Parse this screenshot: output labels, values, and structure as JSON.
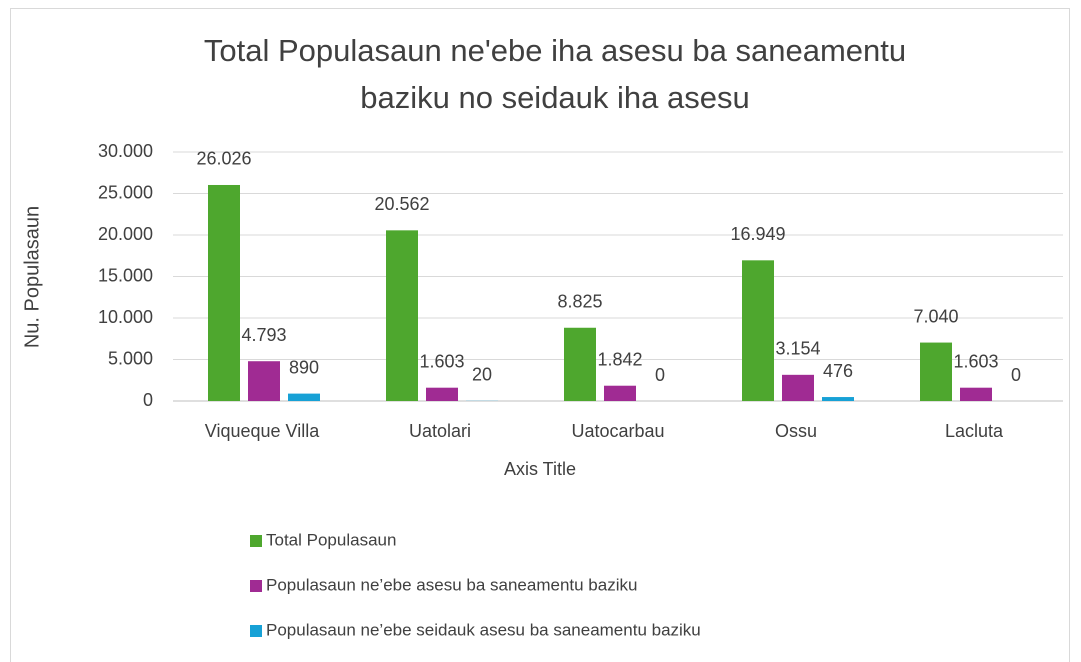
{
  "chart_data": {
    "type": "bar",
    "title": [
      "Total Populasaun ne'ebe iha asesu ba saneamentu",
      "baziku no seidauk iha asesu"
    ],
    "x_label": "Axis Title",
    "y_label": "Nu. Populasaun",
    "categories": [
      "Viqueque Villa",
      "Uatolari",
      "Uatocarbau",
      "Ossu",
      "Lacluta"
    ],
    "series": [
      {
        "name": "Total Populasaun",
        "color": "#4ea72e",
        "values": [
          26026,
          20562,
          8825,
          16949,
          7040
        ],
        "value_labels": [
          "26.026",
          "20.562",
          "8.825",
          "16.949",
          "7.040"
        ]
      },
      {
        "name": "Populasaun ne’ebe asesu ba saneamentu baziku",
        "color": "#a02b93",
        "values": [
          4793,
          1603,
          1842,
          3154,
          1603
        ],
        "value_labels": [
          "4.793",
          "1.603",
          "1.842",
          "3.154",
          "1.603"
        ]
      },
      {
        "name": "Populasaun ne’ebe seidauk asesu ba saneamentu baziku",
        "color": "#17a1d6",
        "values": [
          890,
          20,
          0,
          476,
          0
        ]
      }
    ],
    "ylim": [
      0,
      30000
    ],
    "yticks": [
      0,
      {
        "value": 5000,
        "label": "5.000"
      },
      {
        "value": 10000,
        "label": "10.000"
      },
      {
        "value": 15000,
        "label": "15.000"
      },
      {
        "value": 20000,
        "label": "20.000"
      },
      {
        "value": 25000,
        "label": "25.000"
      },
      {
        "value": 30000,
        "label": "30.000"
      }
    ],
    "grid": true,
    "legend": "bottom"
  }
}
